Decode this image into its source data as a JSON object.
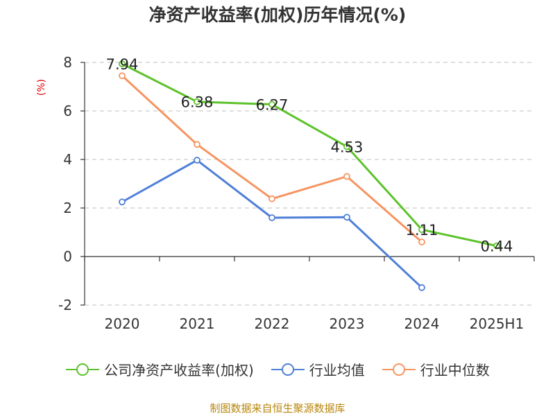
{
  "chart_data": {
    "type": "line",
    "title": "净资产收益率(加权)历年情况(%)",
    "ylabel": "(%)",
    "xlabel": "",
    "categories": [
      "2020",
      "2021",
      "2022",
      "2023",
      "2024",
      "2025H1"
    ],
    "ylim": [
      -2,
      8
    ],
    "yticks": [
      -2,
      0,
      2,
      4,
      6,
      8
    ],
    "grid": true,
    "legend_position": "bottom",
    "series": [
      {
        "name": "公司净资产收益率(加权)",
        "color": "#5cc22a",
        "values": [
          7.94,
          6.38,
          6.27,
          4.53,
          1.11,
          0.44
        ],
        "labels": [
          "7.94",
          "6.38",
          "6.27",
          "4.53",
          "1.11",
          "0.44"
        ]
      },
      {
        "name": "行业均值",
        "color": "#4f7fd8",
        "values": [
          2.25,
          3.97,
          1.6,
          1.62,
          -1.28,
          null
        ]
      },
      {
        "name": "行业中位数",
        "color": "#f79460",
        "values": [
          7.45,
          4.62,
          2.38,
          3.3,
          0.6,
          null
        ]
      }
    ]
  },
  "source_text": "制图数据来自恒生聚源数据库"
}
